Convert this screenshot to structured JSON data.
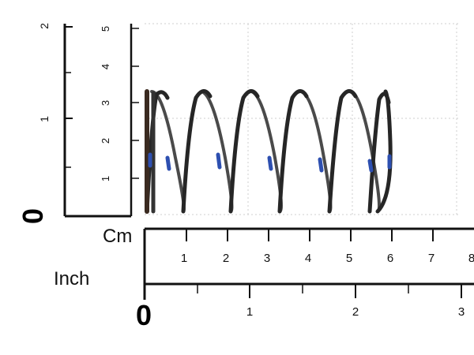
{
  "ruler": {
    "cm_label": "Cm",
    "inch_label": "Inch",
    "zero_label": "0",
    "cm_numbers": [
      "1",
      "2",
      "3",
      "4",
      "5",
      "6",
      "7",
      "8"
    ],
    "inch_numbers": [
      "1",
      "2",
      "3"
    ],
    "vertical_cm_numbers": [
      "1",
      "2",
      "3",
      "4",
      "5"
    ],
    "vertical_inch_numbers": [
      "1",
      "2"
    ]
  },
  "colors": {
    "ruler": "#111111",
    "grid": "#cccccc",
    "spring_wire": "#2a2a2a",
    "spring_mark": "#2d4fb0"
  },
  "photo": {
    "subject": "compression-spring"
  }
}
